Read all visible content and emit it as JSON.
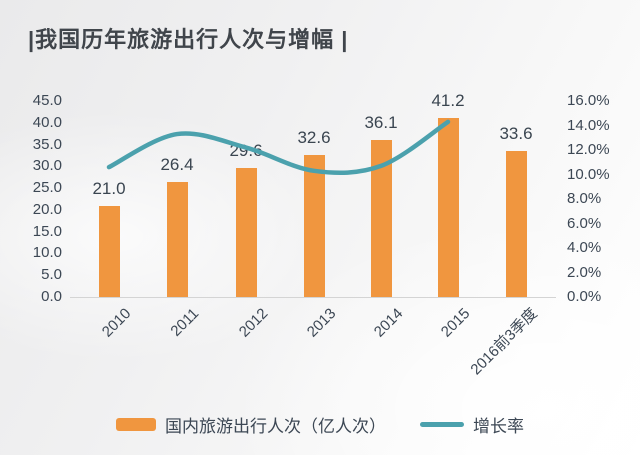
{
  "title": "|我国历年旅游出行人次与增幅 |",
  "colors": {
    "bar": "#F0963F",
    "line": "#4BA1AD",
    "axis_text": "#3C4754",
    "data_label_text": "#3A4550",
    "title_text": "#40454B",
    "legend_text": "#3C4754",
    "baseline": "#D4D4D4"
  },
  "chart_data": {
    "type": "bar",
    "title": "我国历年旅游出行人次与增幅",
    "subtitle": "",
    "categories": [
      "2010",
      "2011",
      "2012",
      "2013",
      "2014",
      "2015",
      "2016前3季度"
    ],
    "series": [
      {
        "name": "国内旅游出行人次（亿人次）",
        "type": "bar",
        "axis": "left",
        "color": "#F0963F",
        "values": [
          21.0,
          26.4,
          29.6,
          32.6,
          36.1,
          41.2,
          33.6
        ],
        "data_labels": [
          "21.0",
          "26.4",
          "29.6",
          "32.6",
          "36.1",
          "41.2",
          "33.6"
        ]
      },
      {
        "name": "增长率",
        "type": "line",
        "axis": "right",
        "color": "#4BA1AD",
        "values": [
          10.6,
          13.3,
          12.2,
          10.3,
          10.7,
          14.3,
          null
        ]
      }
    ],
    "left_axis": {
      "min": 0,
      "max": 45,
      "step": 5,
      "tick_labels": [
        "45.0",
        "40.0",
        "35.0",
        "30.0",
        "25.0",
        "20.0",
        "15.0",
        "10.0",
        "5.0",
        "0.0"
      ]
    },
    "right_axis": {
      "min": 0,
      "max": 16,
      "step": 2,
      "tick_labels": [
        "16.0%",
        "14.0%",
        "12.0%",
        "10.0%",
        "8.0%",
        "6.0%",
        "4.0%",
        "2.0%",
        "0.0%"
      ]
    },
    "grid": false,
    "legend_position": "bottom"
  }
}
